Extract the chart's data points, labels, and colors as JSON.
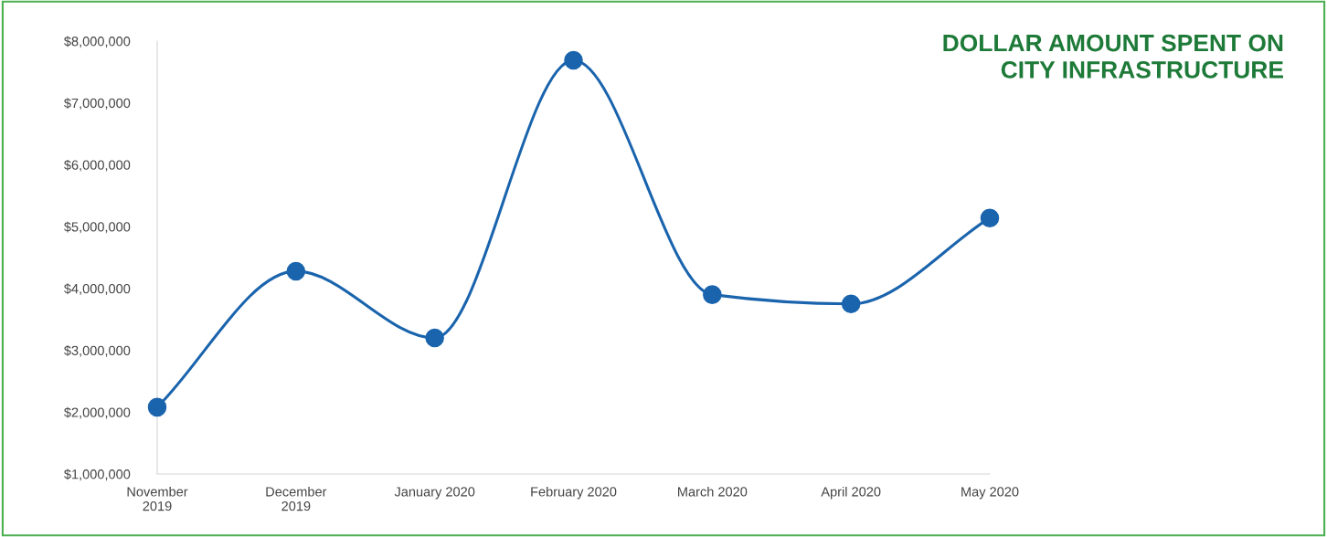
{
  "chart_data": {
    "type": "line",
    "title": "DOLLAR AMOUNT SPENT ON\nCITY INFRASTRUCTURE",
    "categories": [
      "November\n2019",
      "December\n2019",
      "January 2020",
      "February 2020",
      "March 2020",
      "April 2020",
      "May 2020"
    ],
    "series": [
      {
        "color": "#1a64ad",
        "values": [
          2080000,
          4280000,
          3200000,
          7690000,
          3900000,
          3750000,
          5140000
        ]
      }
    ],
    "ylim": [
      1000000,
      8000000
    ],
    "yticks": [
      {
        "value": 1000000,
        "label": "$1,000,000"
      },
      {
        "value": 2000000,
        "label": "$2,000,000"
      },
      {
        "value": 3000000,
        "label": "$3,000,000"
      },
      {
        "value": 4000000,
        "label": "$4,000,000"
      },
      {
        "value": 5000000,
        "label": "$5,000,000"
      },
      {
        "value": 6000000,
        "label": "$6,000,000"
      },
      {
        "value": 7000000,
        "label": "$7,000,000"
      },
      {
        "value": 8000000,
        "label": "$8,000,000"
      }
    ],
    "grid": false,
    "legend": false,
    "marker": "circle",
    "line_style": "solid"
  }
}
